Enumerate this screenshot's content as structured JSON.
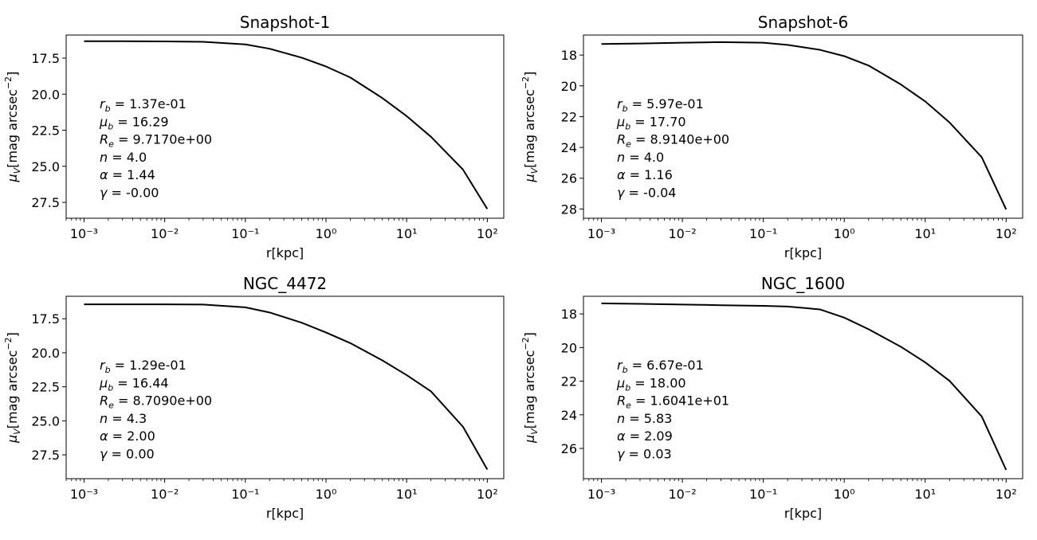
{
  "chart_data": [
    {
      "type": "line",
      "title": "Snapshot-1",
      "xlabel": "r[kpc]",
      "ylabel": "μ_V[mag arcsec^-2]",
      "xscale": "log",
      "xlim": [
        0.0006,
        160
      ],
      "ylim": [
        28.6,
        15.9
      ],
      "y_inverted": true,
      "xticks": [
        0.001,
        0.01,
        0.1,
        1,
        10,
        100
      ],
      "xticklabels": [
        "10⁻³",
        "10⁻²",
        "10⁻¹",
        "10⁰",
        "10¹",
        "10²"
      ],
      "yticks": [
        17.5,
        20.0,
        22.5,
        25.0,
        27.5
      ],
      "yticklabels": [
        "17.5",
        "20.0",
        "22.5",
        "25.0",
        "27.5"
      ],
      "grid": false,
      "series": [
        {
          "color": "#000000",
          "x": [
            0.001,
            0.003,
            0.01,
            0.03,
            0.1,
            0.2,
            0.5,
            1,
            2,
            5,
            10,
            20,
            50,
            100
          ],
          "y": [
            16.33,
            16.33,
            16.34,
            16.37,
            16.55,
            16.85,
            17.47,
            18.08,
            18.84,
            20.27,
            21.52,
            22.95,
            25.23,
            27.96
          ]
        }
      ],
      "annotations": [
        {
          "sym": "r",
          "sub": "b",
          "value": "1.37e-01"
        },
        {
          "sym": "μ",
          "sub": "b",
          "value": "16.29"
        },
        {
          "sym": "R",
          "sub": "e",
          "value": "9.7170e+00"
        },
        {
          "sym": "n",
          "sub": "",
          "value": "4.0"
        },
        {
          "sym": "α",
          "sub": "",
          "value": "1.44"
        },
        {
          "sym": "γ",
          "sub": "",
          "value": "-0.00"
        }
      ]
    },
    {
      "type": "line",
      "title": "Snapshot-6",
      "xlabel": "r[kpc]",
      "ylabel": "μ_V[mag arcsec^-2]",
      "xscale": "log",
      "xlim": [
        0.0006,
        160
      ],
      "ylim": [
        28.6,
        16.7
      ],
      "y_inverted": true,
      "xticks": [
        0.001,
        0.01,
        0.1,
        1,
        10,
        100
      ],
      "xticklabels": [
        "10⁻³",
        "10⁻²",
        "10⁻¹",
        "10⁰",
        "10¹",
        "10²"
      ],
      "yticks": [
        18,
        20,
        22,
        24,
        26,
        28
      ],
      "yticklabels": [
        "18",
        "20",
        "22",
        "24",
        "26",
        "28"
      ],
      "grid": false,
      "series": [
        {
          "color": "#000000",
          "x": [
            0.001,
            0.003,
            0.01,
            0.03,
            0.1,
            0.2,
            0.5,
            1,
            2,
            5,
            10,
            20,
            50,
            100
          ],
          "y": [
            17.28,
            17.25,
            17.2,
            17.16,
            17.2,
            17.34,
            17.66,
            18.07,
            18.68,
            19.91,
            21.01,
            22.38,
            24.64,
            28.03
          ]
        }
      ],
      "annotations": [
        {
          "sym": "r",
          "sub": "b",
          "value": "5.97e-01"
        },
        {
          "sym": "μ",
          "sub": "b",
          "value": "17.70"
        },
        {
          "sym": "R",
          "sub": "e",
          "value": "8.9140e+00"
        },
        {
          "sym": "n",
          "sub": "",
          "value": "4.0"
        },
        {
          "sym": "α",
          "sub": "",
          "value": "1.16"
        },
        {
          "sym": "γ",
          "sub": "",
          "value": "-0.04"
        }
      ]
    },
    {
      "type": "line",
      "title": "NGC_4472",
      "xlabel": "r[kpc]",
      "ylabel": "μ_V[mag arcsec^-2]",
      "xscale": "log",
      "xlim": [
        0.0006,
        160
      ],
      "ylim": [
        29.25,
        15.85
      ],
      "y_inverted": true,
      "xticks": [
        0.001,
        0.01,
        0.1,
        1,
        10,
        100
      ],
      "xticklabels": [
        "10⁻³",
        "10⁻²",
        "10⁻¹",
        "10⁰",
        "10¹",
        "10²"
      ],
      "yticks": [
        17.5,
        20.0,
        22.5,
        25.0,
        27.5
      ],
      "yticklabels": [
        "17.5",
        "20.0",
        "22.5",
        "25.0",
        "27.5"
      ],
      "grid": false,
      "series": [
        {
          "color": "#000000",
          "x": [
            0.001,
            0.003,
            0.01,
            0.03,
            0.1,
            0.2,
            0.5,
            1,
            2,
            5,
            10,
            20,
            50,
            100
          ],
          "y": [
            16.44,
            16.44,
            16.44,
            16.46,
            16.66,
            17.04,
            17.79,
            18.51,
            19.29,
            20.56,
            21.64,
            22.83,
            25.44,
            28.58
          ]
        }
      ],
      "annotations": [
        {
          "sym": "r",
          "sub": "b",
          "value": "1.29e-01"
        },
        {
          "sym": "μ",
          "sub": "b",
          "value": "16.44"
        },
        {
          "sym": "R",
          "sub": "e",
          "value": "8.7090e+00"
        },
        {
          "sym": "n",
          "sub": "",
          "value": "4.3"
        },
        {
          "sym": "α",
          "sub": "",
          "value": "2.00"
        },
        {
          "sym": "γ",
          "sub": "",
          "value": "0.00"
        }
      ]
    },
    {
      "type": "line",
      "title": "NGC_1600",
      "xlabel": "r[kpc]",
      "ylabel": "μ_V[mag arcsec^-2]",
      "xscale": "log",
      "xlim": [
        0.0006,
        160
      ],
      "ylim": [
        27.8,
        16.95
      ],
      "y_inverted": true,
      "xticks": [
        0.001,
        0.01,
        0.1,
        1,
        10,
        100
      ],
      "xticklabels": [
        "10⁻³",
        "10⁻²",
        "10⁻¹",
        "10⁰",
        "10¹",
        "10²"
      ],
      "yticks": [
        18,
        20,
        22,
        24,
        26
      ],
      "yticklabels": [
        "18",
        "20",
        "22",
        "24",
        "26"
      ],
      "grid": false,
      "series": [
        {
          "color": "#000000",
          "x": [
            0.001,
            0.003,
            0.01,
            0.03,
            0.1,
            0.2,
            0.5,
            1,
            2,
            5,
            10,
            20,
            50,
            100
          ],
          "y": [
            17.37,
            17.4,
            17.44,
            17.48,
            17.52,
            17.56,
            17.73,
            18.22,
            18.91,
            19.95,
            20.88,
            21.98,
            24.1,
            27.28
          ]
        }
      ],
      "annotations": [
        {
          "sym": "r",
          "sub": "b",
          "value": "6.67e-01"
        },
        {
          "sym": "μ",
          "sub": "b",
          "value": "18.00"
        },
        {
          "sym": "R",
          "sub": "e",
          "value": "1.6041e+01"
        },
        {
          "sym": "n",
          "sub": "",
          "value": "5.83"
        },
        {
          "sym": "α",
          "sub": "",
          "value": "2.09"
        },
        {
          "sym": "γ",
          "sub": "",
          "value": "0.03"
        }
      ]
    }
  ]
}
